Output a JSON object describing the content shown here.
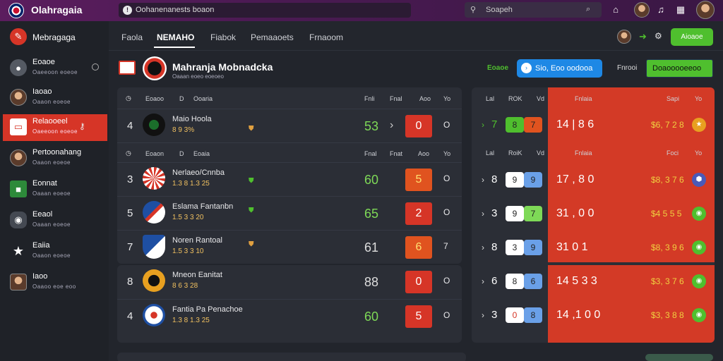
{
  "app": {
    "brand": "Olahragaia",
    "search_text": "Oohanenanests boaon",
    "search2_label": "Soapeh"
  },
  "header_actions": {
    "icons": [
      "home-icon",
      "avatar",
      "bell-icon",
      "grid-icon",
      "profile-avatar"
    ]
  },
  "sidebar": {
    "items": [
      {
        "title": "Mebragaga",
        "sub": "",
        "icon": "logo-icon"
      },
      {
        "title": "Eoaoe",
        "sub": "Oaeeoon eoeoe",
        "icon": "mic-icon"
      },
      {
        "title": "Iaoao",
        "sub": "Oaaon eoeoe",
        "icon": "user-icon"
      },
      {
        "title": "Relaooeel",
        "sub": "Oaeeoon eoeoe",
        "icon": "ticket-icon"
      },
      {
        "title": "Pertoonahang",
        "sub": "Oaaon eoeoe",
        "icon": "user-icon"
      },
      {
        "title": "Eonnat",
        "sub": "Oaaan eoeoe",
        "icon": "square-icon"
      },
      {
        "title": "Eeaol",
        "sub": "Oaaan eoeoe",
        "icon": "blob-icon"
      },
      {
        "title": "Eaiia",
        "sub": "Oaaon eoeoe",
        "icon": "star-icon"
      },
      {
        "title": "Iaoo",
        "sub": "Oaaoo eoe eoo",
        "icon": "user-icon"
      }
    ]
  },
  "tabs": [
    "Faola",
    "NEMAHO",
    "Fiabok",
    "Pemaaoets",
    "Frnaoom"
  ],
  "tab_actions": {
    "green_button": "Aioaoe"
  },
  "match_header": {
    "title": "Mahranja Mobnadcka",
    "sub": "Oaaan eoeo eoeoeo",
    "green_text": "Eoaoe",
    "blue_button": "Sio, Eoo oodooa",
    "label": "Fnrooi",
    "green_box": "Doaooooeeoo"
  },
  "panel_headers": {
    "cols": [
      "Eoaoo",
      "Ooaria",
      "Fnli",
      "Fnal",
      "Aoo",
      "Yo"
    ],
    "cols2": [
      "Eoaon",
      "Eoaia",
      "Fnal",
      "Fnat",
      "Aoo",
      "Yo"
    ]
  },
  "matches": [
    {
      "num": "4",
      "team": "Maio Hoola",
      "odds": "8 9 3%",
      "score": "53",
      "box": "0",
      "mark": "O"
    },
    {
      "num": "3",
      "team": "Nerlaeo/Cnnba",
      "odds": "1.3 8 1.3 25",
      "score": "60",
      "box": "5",
      "mark": "O"
    },
    {
      "num": "5",
      "team": "Eslama Fantanbn",
      "odds": "1.5 3 3 20",
      "score": "65",
      "box": "2",
      "mark": "O"
    },
    {
      "num": "7",
      "team": "Noren Rantoal",
      "odds": "1.5 3 3 10",
      "score": "61",
      "box": "6",
      "mark": "7"
    },
    {
      "num": "8",
      "team": "Mneon Eanitat",
      "odds": "8 6 3 28",
      "score": "88",
      "box": "0",
      "mark": "O"
    },
    {
      "num": "4",
      "team": "Fantia Pa Penachoe",
      "odds": "1.3 8 1.3 25",
      "score": "60",
      "box": "5",
      "mark": "O"
    }
  ],
  "right_headers": {
    "row1": [
      "Lal",
      "ROK",
      "Vd",
      "Fnlaia",
      "Sapi",
      "Yo"
    ],
    "row2": [
      "Lal",
      "RoiK",
      "Vd",
      "Fnlaia",
      "Foci",
      "Yo"
    ]
  },
  "right_rows": [
    {
      "pm": "7",
      "a": "8",
      "b": "7",
      "val": "14 | 8 6",
      "money": "$6, 7 2 8"
    },
    {
      "pm": "8",
      "a": "9",
      "b": "9",
      "val": "17 , 8 0",
      "money": "$8, 3 7 6"
    },
    {
      "pm": "3",
      "a": "9",
      "b": "7",
      "val": "31 , 0 0",
      "money": "$4 5 5 5"
    },
    {
      "pm": "8",
      "a": "3",
      "b": "9",
      "val": "31 0 1",
      "money": "$8, 3 9 6"
    },
    {
      "pm": "6",
      "a": "8",
      "b": "6",
      "val": "14 5 3 3",
      "money": "$3, 3 7 6"
    },
    {
      "pm": "3",
      "a": "0",
      "b": "8",
      "val": "14 ,1 0 0",
      "money": "$3, 3 8 8"
    }
  ],
  "colors": {
    "accent_red": "#d63527",
    "accent_green": "#4fbf2e",
    "topbar_purple": "#5b1d5e",
    "accent_blue": "#1e88e5"
  }
}
